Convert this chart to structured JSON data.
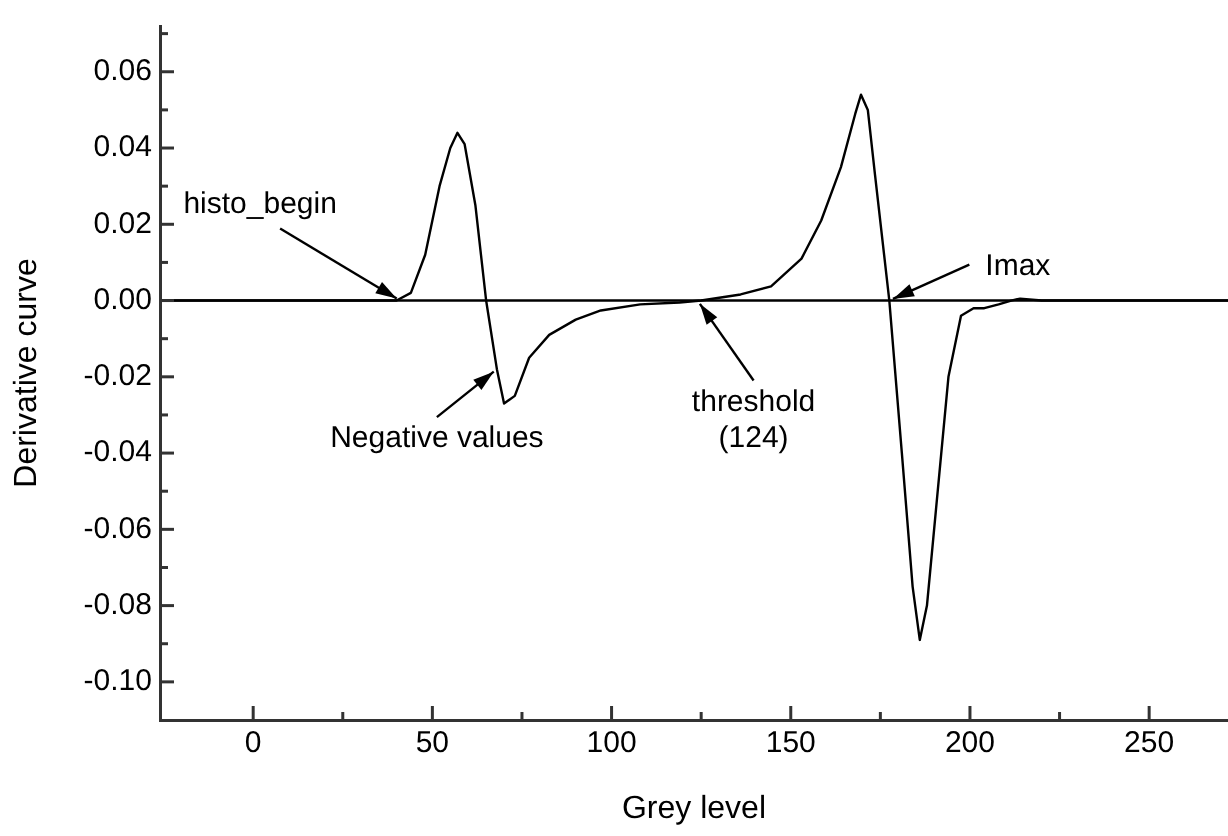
{
  "chart_data": {
    "type": "line",
    "xlabel": "Grey level",
    "ylabel": "Derivative curve",
    "xlim": [
      -26,
      272
    ],
    "ylim": [
      -0.11,
      0.072
    ],
    "xticks": [
      0,
      {
        "value": 25,
        "label": null
      },
      50,
      {
        "value": 75,
        "label": null
      },
      100,
      {
        "value": 125,
        "label": null
      },
      150,
      {
        "value": 175,
        "label": null
      },
      200,
      {
        "value": 225,
        "label": null
      },
      250
    ],
    "yticks": [
      {
        "value": -0.1,
        "label": "-0.10"
      },
      {
        "value": -0.09,
        "label": null
      },
      -0.08,
      {
        "value": -0.07,
        "label": null
      },
      -0.06,
      {
        "value": -0.05,
        "label": null
      },
      -0.04,
      {
        "value": -0.03,
        "label": null
      },
      -0.02,
      {
        "value": -0.01,
        "label": null
      },
      {
        "value": 0,
        "label": "0.00"
      },
      {
        "value": 0.01,
        "label": null
      },
      0.02,
      {
        "value": 0.03,
        "label": null
      },
      0.04,
      {
        "value": 0.05,
        "label": null
      },
      0.06,
      {
        "value": 0.07,
        "label": null
      }
    ],
    "grid": false,
    "legend": false,
    "marker": "none",
    "line_style": "solid",
    "series": [
      {
        "color": "#000000",
        "x": [
          -26,
          0,
          40,
          44,
          48,
          52,
          55,
          57,
          59,
          62,
          65,
          68,
          70,
          73,
          77,
          82.6,
          90,
          97,
          108,
          119,
          125,
          136,
          144.5,
          153,
          158.5,
          164,
          168,
          169.6,
          171.5,
          173.5,
          177.5,
          181,
          184,
          186,
          188,
          191,
          194,
          197.5,
          201,
          204,
          208,
          211.5,
          214,
          220,
          272
        ],
        "values": [
          0,
          0,
          0,
          0.002,
          0.012,
          0.03,
          0.04,
          0.044,
          0.041,
          0.025,
          0,
          -0.018,
          -0.027,
          -0.025,
          -0.015,
          -0.009,
          -0.005,
          -0.0026,
          -0.001,
          -0.0005,
          0,
          0.0016,
          0.0037,
          0.011,
          0.021,
          0.035,
          0.049,
          0.054,
          0.05,
          0.033,
          0,
          -0.04,
          -0.075,
          -0.089,
          -0.08,
          -0.05,
          -0.02,
          -0.004,
          -0.002,
          -0.002,
          -0.001,
          0,
          0.0005,
          0,
          0
        ]
      }
    ],
    "ref_lines": [
      {
        "axis": "y",
        "value": 0,
        "color": "#000000"
      }
    ],
    "annotations": [
      {
        "text": "histo_begin",
        "x": 41,
        "y": 0
      },
      {
        "text": "Negative values",
        "x": 68,
        "y": -0.018
      },
      {
        "text": "threshold\n(124)",
        "x": 124,
        "y": 0
      },
      {
        "text": "Imax",
        "x": 177.5,
        "y": 0
      }
    ]
  }
}
